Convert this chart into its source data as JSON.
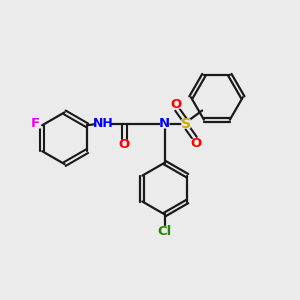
{
  "background_color": "#ebebeb",
  "bond_color": "#1a1a1a",
  "atom_colors": {
    "F": "#ee00ee",
    "N": "#0000ff",
    "O": "#ff0000",
    "S": "#ccaa00",
    "Cl": "#228800",
    "H": "#555555",
    "C": "#1a1a1a"
  },
  "figsize": [
    3.0,
    3.0
  ],
  "dpi": 100
}
